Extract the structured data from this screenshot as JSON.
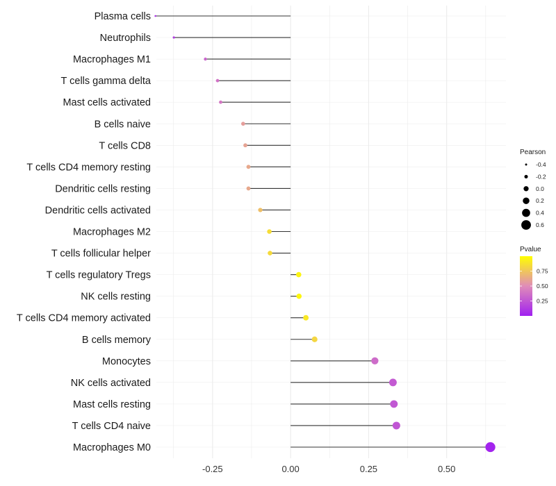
{
  "chart_data": {
    "type": "lollipop",
    "title": "",
    "xlabel": "",
    "ylabel": "",
    "xlim": [
      -0.43,
      0.69
    ],
    "x_ticks": [
      -0.25,
      0.0,
      0.25,
      0.5
    ],
    "x_tick_labels": [
      "-0.25",
      "0.00",
      "0.25",
      "0.50"
    ],
    "grid": true,
    "categories": [
      "Plasma cells",
      "Neutrophils",
      "Macrophages M1",
      "T cells gamma delta",
      "Mast cells activated",
      "B cells naive",
      "T cells CD8",
      "T cells CD4 memory resting",
      "Dendritic cells resting",
      "Dendritic cells activated",
      "Macrophages M2",
      "T cells follicular helper",
      "T cells regulatory  Tregs ",
      "NK cells resting",
      "T cells CD4 memory activated",
      "B cells memory",
      "Monocytes",
      "NK cells activated",
      "Mast cells resting",
      "T cells CD4 naive",
      "Macrophages M0"
    ],
    "pearson": [
      -0.433,
      -0.374,
      -0.273,
      -0.234,
      -0.224,
      -0.152,
      -0.145,
      -0.135,
      -0.135,
      -0.097,
      -0.068,
      -0.066,
      0.026,
      0.027,
      0.049,
      0.077,
      0.27,
      0.328,
      0.331,
      0.339,
      0.64
    ],
    "pvalue": [
      0.08,
      0.13,
      0.32,
      0.38,
      0.4,
      0.58,
      0.6,
      0.62,
      0.62,
      0.72,
      0.85,
      0.84,
      0.95,
      0.96,
      0.9,
      0.82,
      0.35,
      0.27,
      0.26,
      0.25,
      0.02
    ],
    "legend": {
      "size_title": "Pearson",
      "size_values": [
        -0.4,
        -0.2,
        0.0,
        0.2,
        0.4,
        0.6
      ],
      "size_labels": [
        "-0.4",
        "-0.2",
        "0.0",
        "0.2",
        "0.4",
        "0.6"
      ],
      "color_title": "Pvalue",
      "color_ticks": [
        0.25,
        0.5,
        0.75
      ],
      "color_labels": [
        "0.25",
        "0.50",
        "0.75"
      ],
      "color_range": [
        0.0,
        1.0
      ],
      "color_low": "#a020f0",
      "color_high": "#ffff00",
      "placement": "right"
    }
  },
  "colors": {
    "segment": "#333333",
    "grid": "#ebebeb",
    "gradient_low": "#a020f0",
    "gradient_mid": "#e08cb8",
    "gradient_high": "#ffff00"
  }
}
